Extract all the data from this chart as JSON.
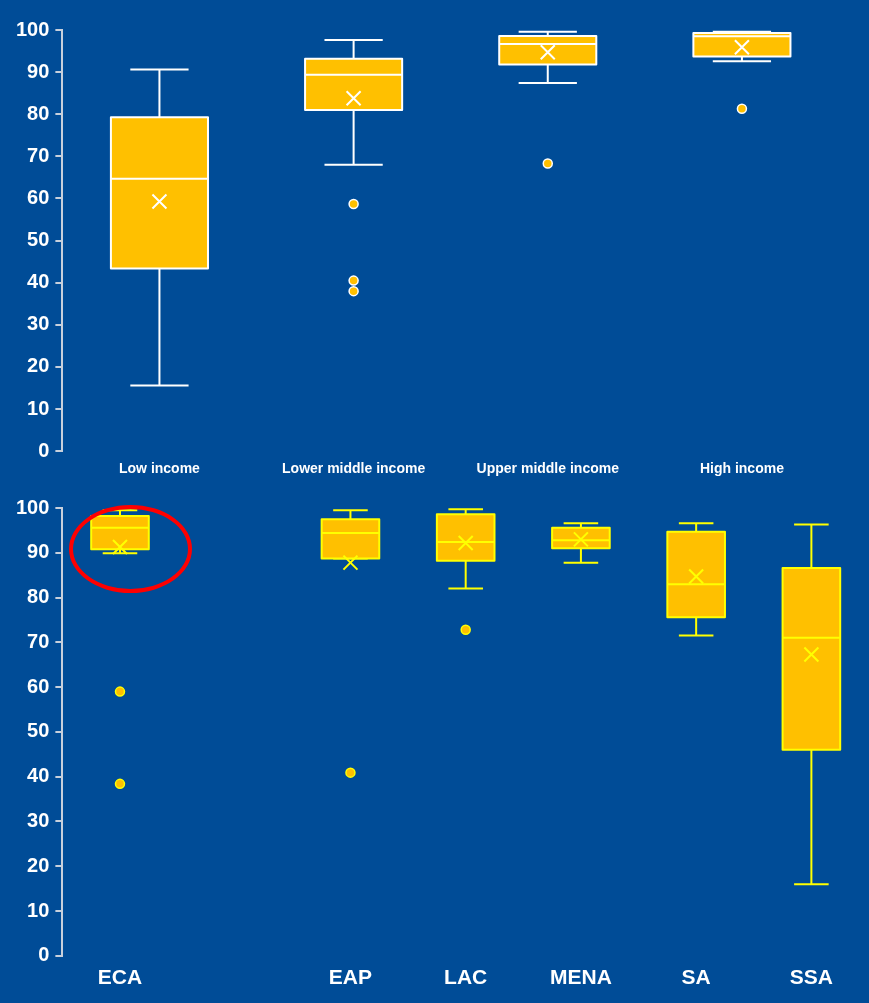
{
  "chart_data": [
    {
      "type": "box",
      "categories": [
        "Low income",
        "Lower middle income",
        "Upper middle income",
        "High income"
      ],
      "color": "#ffc000",
      "ylim": [
        0,
        100
      ],
      "yticks": [
        0,
        10,
        20,
        30,
        40,
        50,
        60,
        70,
        80,
        90,
        100
      ],
      "grid": false,
      "legend": false,
      "boxes": [
        {
          "low": 15.6,
          "q1": 43.4,
          "median": 64.7,
          "q3": 79.3,
          "high": 90.6,
          "mean": 59.3
        },
        {
          "low": 68.0,
          "q1": 81.0,
          "median": 89.4,
          "q3": 93.2,
          "high": 97.6,
          "mean": 83.8,
          "outliers": [
            58.7,
            40.5,
            38.0
          ]
        },
        {
          "low": 87.4,
          "q1": 91.8,
          "median": 96.7,
          "q3": 98.6,
          "high": 99.6,
          "mean": 94.7,
          "outliers": [
            68.3
          ]
        },
        {
          "low": 92.6,
          "q1": 93.7,
          "median": 98.5,
          "q3": 99.3,
          "high": 99.6,
          "mean": 95.9,
          "outliers": [
            81.3
          ]
        }
      ]
    },
    {
      "type": "box",
      "categories": [
        "ECA",
        null,
        "EAP",
        "LAC",
        "MENA",
        "SA",
        "SSA"
      ],
      "color": "#ffc000",
      "ylim": [
        0,
        100
      ],
      "yticks": [
        0,
        10,
        20,
        30,
        40,
        50,
        60,
        70,
        80,
        90,
        100
      ],
      "grid": false,
      "legend": false,
      "boxes": [
        {
          "low": 89.9,
          "q1": 90.8,
          "median": 95.6,
          "q3": 98.2,
          "high": 99.5,
          "mean": 91.3,
          "outliers": [
            59.0,
            38.4
          ]
        },
        null,
        {
          "low": 88.7,
          "q1": 88.7,
          "median": 94.4,
          "q3": 97.5,
          "high": 99.5,
          "mean": 87.8,
          "outliers": [
            40.9
          ]
        },
        {
          "low": 82.0,
          "q1": 88.2,
          "median": 92.4,
          "q3": 98.6,
          "high": 99.7,
          "mean": 92.2,
          "outliers": [
            72.8
          ]
        },
        {
          "low": 87.8,
          "q1": 91.0,
          "median": 92.8,
          "q3": 95.6,
          "high": 96.6,
          "mean": 93.0
        },
        {
          "low": 71.5,
          "q1": 75.6,
          "median": 83.0,
          "q3": 94.7,
          "high": 96.6,
          "mean": 84.7
        },
        {
          "low": 16.0,
          "q1": 46.0,
          "median": 71.0,
          "q3": 86.6,
          "high": 96.3,
          "mean": 67.3
        }
      ]
    }
  ]
}
